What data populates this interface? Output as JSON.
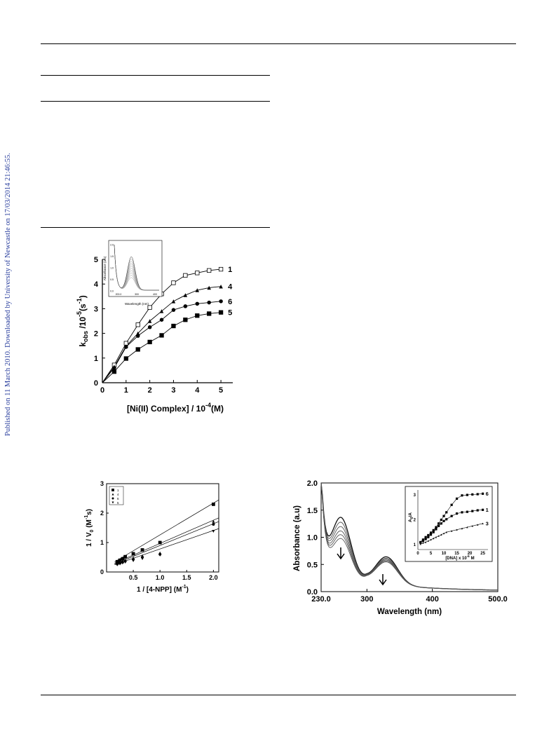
{
  "side_note": "Published on 11 March 2010. Downloaded by University of Newcastle on 17/03/2014 21:46:55.",
  "chart_data": [
    {
      "type": "scatter",
      "xlabel": "[Ni(II) Complex] / 10",
      "xlabel_exp": "-4",
      "xlabel_unit": "(M)",
      "ylabel": "k",
      "ylabel_sub": "obs",
      "ylabel_mid": " /10",
      "ylabel_exp": "-5",
      "ylabel_unit": "(s",
      "ylabel_unit_exp": "-1",
      "ylabel_close": ")",
      "xlim": [
        0,
        5.5
      ],
      "ylim": [
        0,
        5
      ],
      "xticks": [
        "0",
        "1",
        "2",
        "3",
        "4",
        "5"
      ],
      "yticks": [
        "0",
        "1",
        "2",
        "3",
        "4",
        "5"
      ],
      "series": [
        {
          "name": "1",
          "marker": "square-open",
          "x": [
            0.5,
            1,
            1.5,
            2,
            2.5,
            3,
            3.5,
            4,
            4.5,
            5
          ],
          "y": [
            0.72,
            1.6,
            2.35,
            3.05,
            3.6,
            4.05,
            4.35,
            4.45,
            4.55,
            4.6
          ]
        },
        {
          "name": "4",
          "marker": "triangle",
          "x": [
            0.5,
            1,
            1.5,
            2,
            2.5,
            3,
            3.5,
            4,
            4.5,
            5
          ],
          "y": [
            0.65,
            1.48,
            2.0,
            2.5,
            2.9,
            3.3,
            3.55,
            3.75,
            3.85,
            3.9
          ]
        },
        {
          "name": "6",
          "marker": "circle",
          "x": [
            0.5,
            1,
            1.5,
            2,
            2.5,
            3,
            3.5,
            4,
            4.5,
            5
          ],
          "y": [
            0.6,
            1.45,
            1.9,
            2.25,
            2.55,
            2.95,
            3.1,
            3.2,
            3.25,
            3.3
          ]
        },
        {
          "name": "5",
          "marker": "square",
          "x": [
            0.5,
            1,
            1.5,
            2,
            2.5,
            3,
            3.5,
            4,
            4.5,
            5
          ],
          "y": [
            0.45,
            0.98,
            1.35,
            1.65,
            1.92,
            2.3,
            2.55,
            2.72,
            2.8,
            2.85
          ]
        }
      ],
      "inset": {
        "type": "line",
        "xlabel": "Wavelength (nm)",
        "ylabel": "Absorbance (a.u)",
        "xticks": [
          "200.0",
          "300",
          "400"
        ],
        "yticks": [
          "0.0",
          "0.5",
          "1.0",
          "1.5",
          "2.0"
        ],
        "curve_count": 10
      }
    },
    {
      "type": "scatter",
      "xlabel": "1 / [4-NPP] (M",
      "xlabel_exp": "-1",
      "xlabel_close": ")",
      "ylabel": "1 / V",
      "ylabel_sub": "0",
      "ylabel_mid": " (M",
      "ylabel_exp": "-1",
      "ylabel_unit": "s)",
      "xlim": [
        0,
        2.1
      ],
      "ylim": [
        0,
        3
      ],
      "xticks": [
        "0.5",
        "1.0",
        "1.5",
        "2.0"
      ],
      "yticks": [
        "0",
        "1",
        "2",
        "3"
      ],
      "legend": [
        "1",
        "4",
        "6",
        "5"
      ],
      "legend_position": "top-left",
      "series": [
        {
          "name": "1",
          "marker": "square",
          "x": [
            0.2,
            0.25,
            0.3,
            0.35,
            0.5,
            0.67,
            1.0,
            2.0
          ],
          "y": [
            0.35,
            0.4,
            0.45,
            0.52,
            0.62,
            0.75,
            1.0,
            2.3
          ]
        },
        {
          "name": "4",
          "marker": "triangle",
          "x": [
            0.2,
            0.25,
            0.3,
            0.35,
            0.5,
            0.67,
            1.0,
            2.0
          ],
          "y": [
            0.3,
            0.33,
            0.37,
            0.4,
            0.48,
            0.55,
            0.65,
            1.72
          ]
        },
        {
          "name": "6",
          "marker": "circle",
          "x": [
            0.2,
            0.25,
            0.3,
            0.35,
            0.5,
            0.67,
            1.0,
            2.0
          ],
          "y": [
            0.27,
            0.3,
            0.33,
            0.37,
            0.43,
            0.5,
            0.6,
            1.62
          ]
        },
        {
          "name": "5",
          "marker": "triangle-down",
          "x": [
            0.2,
            0.25,
            0.3,
            0.35,
            0.5,
            0.67,
            1.0,
            2.0
          ],
          "y": [
            0.24,
            0.27,
            0.3,
            0.33,
            0.38,
            0.45,
            0.57,
            1.38
          ]
        }
      ],
      "fits": [
        {
          "slope": 1.08,
          "intercept": 0.18
        },
        {
          "slope": 0.79,
          "intercept": 0.18
        },
        {
          "slope": 0.74,
          "intercept": 0.16
        },
        {
          "slope": 0.63,
          "intercept": 0.15
        }
      ]
    },
    {
      "type": "line",
      "xlabel": "Wavelength (nm)",
      "ylabel": "Absorbance (a.u)",
      "xlim": [
        230,
        500
      ],
      "ylim": [
        0,
        2
      ],
      "xticks": [
        "230.0",
        "300",
        "400",
        "500.0"
      ],
      "yticks": [
        "0.0",
        "0.5",
        "1.0",
        "1.5",
        "2.0"
      ],
      "peaks": [
        {
          "wavelength": 260,
          "absorbance": [
            1.27,
            1.18,
            1.1,
            1.02,
            0.95,
            0.88
          ]
        },
        {
          "wavelength": 330,
          "absorbance": [
            0.6,
            0.57,
            0.55,
            0.53,
            0.51,
            0.49
          ]
        }
      ],
      "inset": {
        "type": "scatter",
        "xlabel": "[DNA] x 10",
        "xlabel_exp": "-6",
        "xlabel_unit": "M",
        "ylabel": "A",
        "ylabel_sub": "0",
        "ylabel_rest": "/A",
        "xlim": [
          0,
          27
        ],
        "ylim": [
          0.8,
          3.2
        ],
        "xticks": [
          "0",
          "5",
          "10",
          "15",
          "20",
          "25"
        ],
        "yticks": [
          "1",
          "2",
          "3"
        ],
        "series": [
          {
            "name": "6",
            "marker": "square",
            "x": [
              1,
              2,
              3,
              4,
              5,
              6,
              7,
              8,
              9,
              10,
              11,
              13,
              15,
              17,
              19,
              21,
              23,
              25
            ],
            "y": [
              1.1,
              1.2,
              1.3,
              1.38,
              1.48,
              1.58,
              1.7,
              1.85,
              2.0,
              2.15,
              2.3,
              2.6,
              2.85,
              2.98,
              3.0,
              3.02,
              3.03,
              3.05
            ]
          },
          {
            "name": "1",
            "marker": "square",
            "x": [
              1,
              2,
              3,
              4,
              5,
              6,
              7,
              8,
              9,
              10,
              11,
              13,
              15,
              17,
              19,
              21,
              23,
              25
            ],
            "y": [
              1.08,
              1.15,
              1.22,
              1.3,
              1.4,
              1.5,
              1.62,
              1.75,
              1.85,
              1.95,
              2.02,
              2.15,
              2.25,
              2.3,
              2.32,
              2.35,
              2.38,
              2.4
            ]
          },
          {
            "name": "3",
            "marker": "triangle",
            "x": [
              1,
              2,
              3,
              4,
              5,
              6,
              7,
              8,
              9,
              10,
              11,
              13,
              15,
              17,
              19,
              21,
              23,
              25
            ],
            "y": [
              1.02,
              1.07,
              1.1,
              1.15,
              1.2,
              1.25,
              1.3,
              1.35,
              1.4,
              1.45,
              1.5,
              1.55,
              1.6,
              1.65,
              1.7,
              1.75,
              1.8,
              1.85
            ]
          }
        ]
      }
    }
  ]
}
